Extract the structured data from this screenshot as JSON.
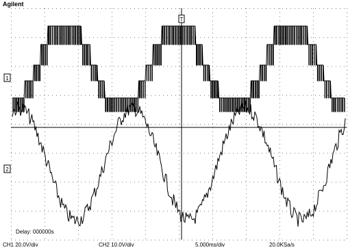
{
  "header": {
    "brand": "Agilent"
  },
  "markers": {
    "ch1": "1",
    "ch2": "2",
    "trigger": "T"
  },
  "overlay": {
    "delay": "Delay: 000000s"
  },
  "status_bar": {
    "ch1_scale": "CH1 20.0V/div",
    "ch2_scale": "CH2 10.0V/div",
    "time_scale": "5.000ms/div",
    "sample_rate": "20.0KSa/s"
  },
  "colors": {
    "trace": "#000000",
    "background": "#ffffff",
    "grid_dots": "#7a7a7a"
  },
  "waveforms": {
    "ch1_trace": "multilevel stepped PWM voltage",
    "ch2_trace": "noisy sinusoidal current",
    "periods_visible": 3
  }
}
